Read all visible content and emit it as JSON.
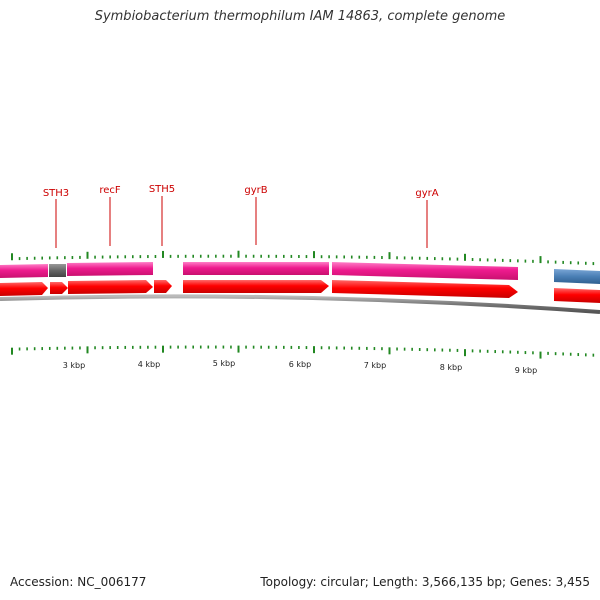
{
  "title": "Symbiobacterium thermophilum IAM 14863, complete genome",
  "footer": {
    "accession": "Accession: NC_006177",
    "info": "Topology: circular; Length: 3,566,135 bp; Genes: 3,455"
  },
  "colors": {
    "cds_track": "#ee1b8e",
    "gene_arrow": "#ff0000",
    "gap_block": "#666666",
    "blue_block": "#4a7fb5",
    "ticks": "#228822",
    "backbone": "#777777",
    "label": "#cc0000"
  },
  "gene_labels": [
    "STH3",
    "recF",
    "STH5",
    "gyrB",
    "gyrA"
  ],
  "kbp_labels": [
    "3 kbp",
    "4 kbp",
    "5 kbp",
    "6 kbp",
    "7 kbp",
    "8 kbp",
    "9 kbp"
  ]
}
